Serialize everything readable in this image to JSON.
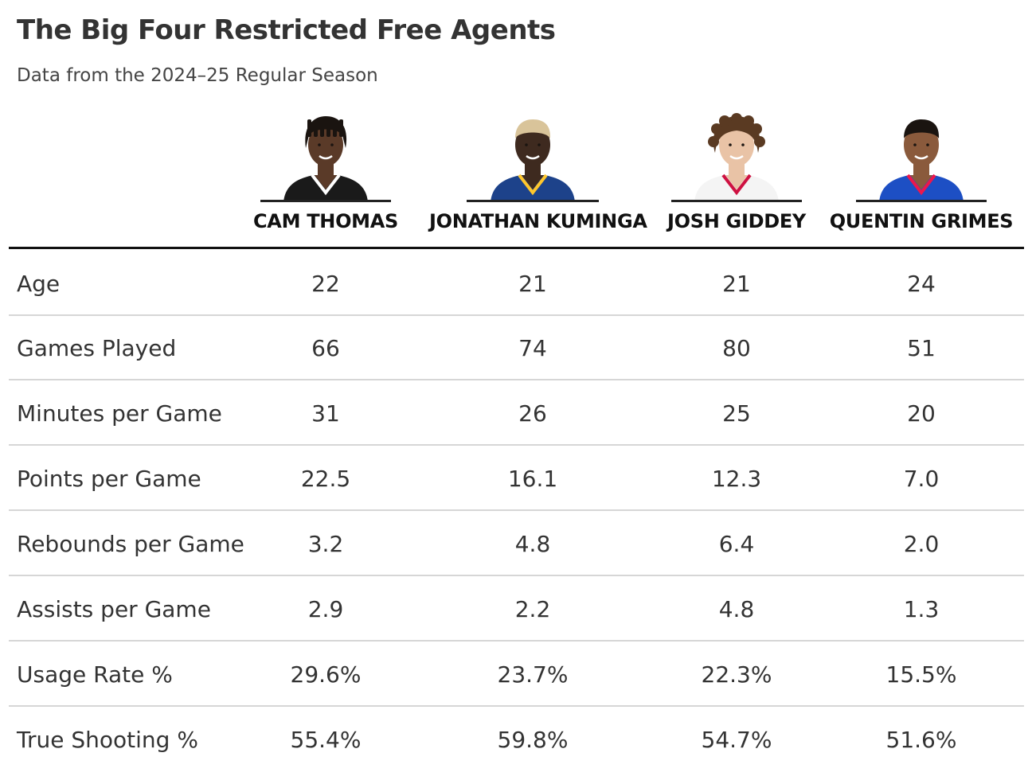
{
  "title": "The Big Four Restricted Free Agents",
  "subtitle": "Data from the 2024–25 Regular Season",
  "chart_data": {
    "type": "table",
    "columns": [
      "CAM THOMAS",
      "JONATHAN KUMINGA",
      "JOSH GIDDEY",
      "QUENTIN GRIMES"
    ],
    "rows": [
      {
        "label": "Age",
        "values": [
          "22",
          "21",
          "21",
          "24"
        ]
      },
      {
        "label": "Games Played",
        "values": [
          "66",
          "74",
          "80",
          "51"
        ]
      },
      {
        "label": "Minutes per Game",
        "values": [
          "31",
          "26",
          "25",
          "20"
        ]
      },
      {
        "label": "Points per Game",
        "values": [
          "22.5",
          "16.1",
          "12.3",
          "7.0"
        ]
      },
      {
        "label": "Rebounds per Game",
        "values": [
          "3.2",
          "4.8",
          "6.4",
          "2.0"
        ]
      },
      {
        "label": "Assists per Game",
        "values": [
          "2.9",
          "2.2",
          "4.8",
          "1.3"
        ]
      },
      {
        "label": "Usage Rate %",
        "values": [
          "29.6%",
          "23.7%",
          "22.3%",
          "15.5%"
        ]
      },
      {
        "label": "True Shooting %",
        "values": [
          "55.4%",
          "59.8%",
          "54.7%",
          "51.6%"
        ]
      }
    ]
  },
  "headshots": [
    {
      "jersey_color": "#1a1a1a",
      "trim_color": "#ffffff",
      "skin": "#5a3a28",
      "hair": "#1a1410",
      "hair_style": "locs"
    },
    {
      "jersey_color": "#1d428a",
      "trim_color": "#ffc72c",
      "skin": "#3e2a1f",
      "hair": "#d9c49a",
      "hair_style": "short"
    },
    {
      "jersey_color": "#f4f4f4",
      "trim_color": "#ce1141",
      "skin": "#e9c3a6",
      "hair": "#5a3a22",
      "hair_style": "curly"
    },
    {
      "jersey_color": "#1d4fc4",
      "trim_color": "#ed174c",
      "skin": "#8a5a3c",
      "hair": "#1a1410",
      "hair_style": "short"
    }
  ]
}
